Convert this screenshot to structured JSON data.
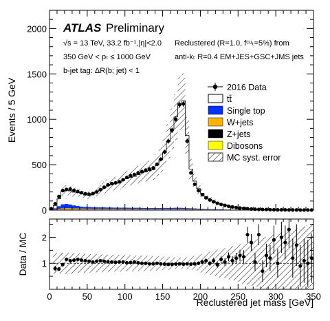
{
  "chart_data": [
    {
      "type": "bar",
      "subtype": "stacked-histogram-with-data-points",
      "x_unit_label": "Reclustered jet mass [GeV]",
      "ylabel": "Events / 5 GeV",
      "xlim": [
        0,
        350
      ],
      "ylim": [
        0,
        2200
      ],
      "bin_width": 5,
      "x_ticks": [
        0,
        50,
        100,
        150,
        200,
        250,
        300,
        350
      ],
      "y_ticks": [
        0,
        500,
        1000,
        1500,
        2000
      ],
      "grid": false,
      "legend_position": "right",
      "annotations": {
        "experiment": "ATLAS",
        "status": "Preliminary",
        "energy_lumi": "√s = 13 TeV, 33.2 fb⁻¹,|η|<2.0",
        "pt_cut": "350 GeV < pₜ ≤ 1000 GeV",
        "btag": "b-jet tag: ΔR(b; jet) < 1",
        "recluster": "Reclustered (R=1.0, fᶜᵘₜ=5%) from",
        "jets": "anti-kₜ R=0.4 EM+JES+GSC+JMS jets"
      },
      "legend": [
        {
          "name": "2016 Data",
          "kind": "marker",
          "color": "#000000"
        },
        {
          "name": "tt̄",
          "kind": "box",
          "color": "#ffffff"
        },
        {
          "name": "Single top",
          "kind": "box",
          "color": "#0033ff"
        },
        {
          "name": "W+jets",
          "kind": "box",
          "color": "#ffb300"
        },
        {
          "name": "Z+jets",
          "kind": "box",
          "color": "#000000"
        },
        {
          "name": "Dibosons",
          "kind": "box",
          "color": "#ffff00"
        },
        {
          "name": "MC syst. error",
          "kind": "hatch",
          "color": "#000000"
        }
      ],
      "bin_centers": [
        2.5,
        7.5,
        12.5,
        17.5,
        22.5,
        27.5,
        32.5,
        37.5,
        42.5,
        47.5,
        52.5,
        57.5,
        62.5,
        67.5,
        72.5,
        77.5,
        82.5,
        87.5,
        92.5,
        97.5,
        102.5,
        107.5,
        112.5,
        117.5,
        122.5,
        127.5,
        132.5,
        137.5,
        142.5,
        147.5,
        152.5,
        157.5,
        162.5,
        167.5,
        172.5,
        177.5,
        182.5,
        187.5,
        192.5,
        197.5,
        202.5,
        207.5,
        212.5,
        217.5,
        222.5,
        227.5,
        232.5,
        237.5,
        242.5,
        247.5,
        252.5,
        257.5,
        262.5,
        267.5,
        272.5,
        277.5,
        282.5,
        287.5,
        292.5,
        297.5,
        302.5,
        307.5,
        312.5,
        317.5,
        322.5,
        327.5,
        332.5,
        337.5,
        342.5,
        347.5
      ],
      "series": [
        {
          "name": "2016 Data",
          "values": [
            15,
            70,
            150,
            215,
            228,
            232,
            218,
            205,
            192,
            180,
            175,
            182,
            200,
            225,
            252,
            278,
            292,
            300,
            312,
            335,
            360,
            380,
            392,
            410,
            425,
            440,
            452,
            465,
            505,
            560,
            640,
            760,
            880,
            1000,
            1160,
            1170,
            760,
            410,
            285,
            215,
            170,
            135,
            112,
            92,
            75,
            62,
            52,
            42,
            35,
            28,
            23,
            19,
            15,
            12,
            10,
            8,
            7,
            6,
            5,
            4,
            3,
            3,
            3,
            2,
            2,
            2,
            1,
            1,
            1,
            1
          ]
        },
        {
          "name": "tt̄",
          "values": [
            5,
            30,
            80,
            140,
            150,
            150,
            145,
            150,
            140,
            130,
            130,
            145,
            170,
            190,
            215,
            240,
            255,
            265,
            275,
            300,
            320,
            335,
            345,
            365,
            385,
            395,
            410,
            420,
            470,
            530,
            610,
            730,
            870,
            1000,
            1150,
            1180,
            800,
            430,
            300,
            220,
            170,
            135,
            108,
            88,
            72,
            60,
            50,
            40,
            33,
            27,
            22,
            18,
            14,
            11,
            9,
            7,
            6,
            5,
            4,
            3,
            3,
            2,
            2,
            2,
            1,
            1,
            1,
            1,
            1,
            0
          ]
        },
        {
          "name": "Single top",
          "values": [
            2,
            12,
            30,
            45,
            48,
            42,
            33,
            27,
            22,
            20,
            18,
            17,
            16,
            15,
            15,
            14,
            14,
            13,
            13,
            13,
            13,
            12,
            12,
            12,
            12,
            11,
            11,
            11,
            11,
            11,
            12,
            12,
            12,
            13,
            13,
            12,
            11,
            10,
            9,
            8,
            7,
            6,
            5,
            5,
            4,
            4,
            3,
            3,
            3,
            2,
            2,
            2,
            2,
            1,
            1,
            1,
            1,
            1,
            1,
            1,
            1,
            0,
            0,
            0,
            0,
            0,
            0,
            0,
            0,
            0
          ]
        },
        {
          "name": "W+jets",
          "values": [
            2,
            6,
            12,
            16,
            18,
            17,
            16,
            15,
            14,
            13,
            13,
            12,
            12,
            12,
            12,
            12,
            12,
            12,
            11,
            11,
            11,
            11,
            11,
            11,
            10,
            10,
            10,
            10,
            10,
            10,
            10,
            10,
            10,
            10,
            10,
            10,
            9,
            9,
            8,
            7,
            6,
            5,
            5,
            4,
            4,
            3,
            3,
            3,
            2,
            2,
            2,
            2,
            1,
            1,
            1,
            1,
            1,
            1,
            1,
            1,
            1,
            0,
            0,
            0,
            0,
            0,
            0,
            0,
            0,
            0
          ]
        },
        {
          "name": "Z+jets",
          "values": [
            0,
            1,
            1,
            2,
            2,
            2,
            2,
            2,
            2,
            2,
            2,
            2,
            2,
            2,
            2,
            2,
            2,
            2,
            2,
            2,
            2,
            2,
            2,
            2,
            2,
            2,
            2,
            2,
            2,
            2,
            2,
            2,
            2,
            2,
            2,
            2,
            1,
            1,
            1,
            1,
            1,
            1,
            1,
            1,
            1,
            1,
            0,
            0,
            0,
            0,
            0,
            0,
            0,
            0,
            0,
            0,
            0,
            0,
            0,
            0,
            0,
            0,
            0,
            0,
            0,
            0,
            0,
            0,
            0,
            0
          ]
        },
        {
          "name": "Dibosons",
          "values": [
            0,
            1,
            1,
            1,
            1,
            1,
            1,
            1,
            1,
            1,
            1,
            1,
            1,
            1,
            1,
            1,
            1,
            1,
            1,
            1,
            1,
            1,
            1,
            1,
            1,
            1,
            1,
            1,
            1,
            1,
            1,
            1,
            1,
            1,
            1,
            1,
            1,
            1,
            1,
            1,
            1,
            1,
            1,
            1,
            0,
            0,
            0,
            0,
            0,
            0,
            0,
            0,
            0,
            0,
            0,
            0,
            0,
            0,
            0,
            0,
            0,
            0,
            0,
            0,
            0,
            0,
            0,
            0,
            0,
            0
          ]
        }
      ],
      "mc_syst_rel_error": 0.25
    },
    {
      "type": "scatter",
      "subtype": "ratio-panel",
      "x_unit_label": "Reclustered jet mass [GeV]",
      "ylabel": "Data / MC",
      "xlim": [
        0,
        350
      ],
      "ylim": [
        0,
        2.7
      ],
      "x_ticks": [
        0,
        50,
        100,
        150,
        200,
        250,
        300,
        350
      ],
      "y_ticks": [
        1,
        2
      ],
      "reference_line": 1,
      "grid": false,
      "x": [
        7.5,
        12.5,
        17.5,
        22.5,
        27.5,
        32.5,
        37.5,
        42.5,
        47.5,
        52.5,
        57.5,
        62.5,
        67.5,
        72.5,
        77.5,
        82.5,
        87.5,
        92.5,
        97.5,
        102.5,
        107.5,
        112.5,
        117.5,
        122.5,
        127.5,
        132.5,
        137.5,
        142.5,
        147.5,
        152.5,
        157.5,
        162.5,
        167.5,
        172.5,
        177.5,
        182.5,
        187.5,
        192.5,
        197.5,
        202.5,
        207.5,
        212.5,
        217.5,
        222.5,
        227.5,
        232.5,
        237.5,
        242.5,
        247.5,
        252.5,
        257.5,
        262.5,
        267.5,
        272.5,
        277.5,
        282.5,
        287.5,
        292.5,
        297.5,
        302.5,
        307.5,
        312.5,
        317.5,
        322.5,
        327.5,
        332.5,
        337.5,
        342.5,
        347.5
      ],
      "ratio": [
        0.8,
        0.78,
        0.95,
        1.15,
        1.1,
        1.12,
        1.15,
        1.12,
        1.1,
        1.08,
        1.05,
        1.08,
        1.1,
        1.08,
        1.06,
        1.05,
        1.04,
        1.05,
        1.05,
        1.02,
        1.03,
        1.05,
        1.02,
        1.0,
        1.0,
        0.98,
        0.98,
        1.0,
        0.98,
        0.97,
        0.96,
        0.96,
        0.97,
        0.98,
        0.97,
        0.98,
        0.97,
        0.98,
        1.0,
        1.05,
        1.1,
        1.0,
        1.1,
        0.95,
        1.15,
        1.05,
        1.25,
        1.1,
        1.2,
        1.3,
        1.25,
        2.1,
        1.8,
        1.05,
        2.1,
        0.7,
        1.3,
        1.2,
        1.9,
        1.0,
        2.0,
        1.8,
        2.3,
        1.2,
        1.7,
        0.9,
        1.1,
        1.0,
        1.2
      ],
      "ratio_err": [
        0.1,
        0.08,
        0.07,
        0.06,
        0.06,
        0.06,
        0.06,
        0.06,
        0.06,
        0.06,
        0.06,
        0.06,
        0.05,
        0.05,
        0.05,
        0.05,
        0.05,
        0.05,
        0.05,
        0.05,
        0.05,
        0.05,
        0.05,
        0.05,
        0.05,
        0.05,
        0.05,
        0.04,
        0.04,
        0.04,
        0.04,
        0.03,
        0.03,
        0.03,
        0.03,
        0.04,
        0.05,
        0.06,
        0.07,
        0.08,
        0.09,
        0.1,
        0.11,
        0.12,
        0.14,
        0.15,
        0.17,
        0.18,
        0.2,
        0.22,
        0.25,
        0.3,
        0.32,
        0.35,
        0.4,
        0.42,
        0.45,
        0.5,
        0.55,
        0.55,
        0.6,
        0.65,
        0.7,
        0.75,
        0.8,
        0.8,
        0.85,
        0.9,
        0.95
      ],
      "mc_band_half_width": [
        0.4,
        0.4,
        0.4,
        0.4,
        0.4,
        0.4,
        0.38,
        0.38,
        0.36,
        0.36,
        0.35,
        0.35,
        0.34,
        0.34,
        0.33,
        0.33,
        0.32,
        0.32,
        0.32,
        0.31,
        0.31,
        0.3,
        0.3,
        0.3,
        0.29,
        0.29,
        0.28,
        0.28,
        0.27,
        0.26,
        0.25,
        0.24,
        0.23,
        0.22,
        0.22,
        0.23,
        0.25,
        0.28,
        0.32,
        0.36,
        0.4,
        0.44,
        0.48,
        0.52,
        0.55,
        0.58,
        0.62,
        0.66,
        0.7,
        0.74,
        0.78,
        0.82,
        0.86,
        0.9,
        0.94,
        0.98,
        1.02,
        1.06,
        1.1,
        1.14,
        1.18,
        1.22,
        1.26,
        1.3,
        1.34,
        1.38,
        1.42,
        1.46,
        1.5
      ]
    }
  ]
}
